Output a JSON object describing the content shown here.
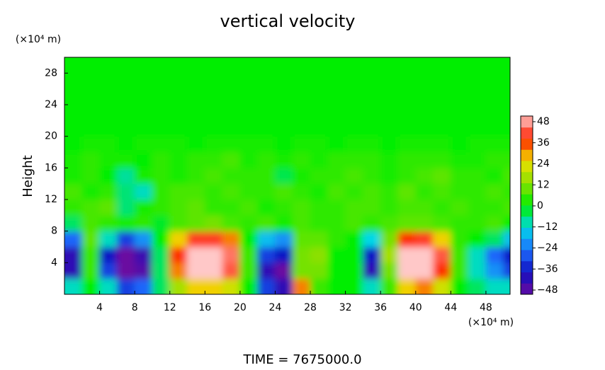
{
  "chart_data": {
    "type": "heatmap",
    "title": "vertical velocity",
    "y_label": "Height",
    "y_unit": "(×10⁴ m)",
    "x_unit": "(×10⁴ m)",
    "footer": "TIME = 7675000.0",
    "xlim": [
      0,
      50.75
    ],
    "ylim": [
      0,
      30
    ],
    "xticks": [
      4,
      8,
      12,
      16,
      20,
      24,
      28,
      32,
      36,
      40,
      44,
      48
    ],
    "yticks": [
      4,
      8,
      12,
      16,
      20,
      24,
      28
    ],
    "x": [
      1,
      3,
      5,
      7,
      9,
      11,
      13,
      15,
      17,
      19,
      21,
      23,
      25,
      27,
      29,
      31,
      33,
      35,
      37,
      39,
      41,
      43,
      45,
      47,
      49,
      51
    ],
    "y": [
      1,
      3,
      5,
      7,
      9,
      11,
      13,
      15,
      17,
      19,
      21,
      23,
      25,
      27,
      29
    ],
    "z": [
      [
        -10,
        0,
        -10,
        -30,
        -25,
        -5,
        15,
        25,
        25,
        20,
        0,
        -30,
        -40,
        30,
        5,
        0,
        0,
        -10,
        5,
        25,
        30,
        20,
        0,
        -5,
        -10,
        -10
      ],
      [
        -40,
        5,
        -30,
        -48,
        -45,
        -5,
        30,
        48,
        48,
        40,
        5,
        -40,
        -48,
        10,
        10,
        0,
        0,
        -40,
        10,
        48,
        48,
        35,
        5,
        -10,
        -20,
        -30
      ],
      [
        -40,
        5,
        -35,
        -48,
        -42,
        -5,
        35,
        48,
        48,
        42,
        5,
        -30,
        -35,
        10,
        12,
        0,
        0,
        -35,
        15,
        48,
        48,
        40,
        5,
        -10,
        -25,
        -35
      ],
      [
        -25,
        8,
        -10,
        -30,
        -20,
        0,
        25,
        38,
        38,
        30,
        0,
        -15,
        -20,
        8,
        8,
        4,
        0,
        -12,
        10,
        35,
        38,
        25,
        4,
        0,
        -5,
        -15
      ],
      [
        -5,
        6,
        4,
        2,
        4,
        -2,
        6,
        8,
        10,
        6,
        4,
        6,
        2,
        6,
        4,
        4,
        6,
        4,
        6,
        8,
        8,
        6,
        4,
        4,
        6,
        0
      ],
      [
        4,
        6,
        8,
        -6,
        2,
        4,
        6,
        8,
        4,
        4,
        6,
        2,
        4,
        6,
        4,
        4,
        6,
        6,
        4,
        6,
        6,
        4,
        6,
        4,
        4,
        6
      ],
      [
        6,
        2,
        4,
        -6,
        -10,
        4,
        6,
        6,
        4,
        6,
        4,
        4,
        6,
        4,
        2,
        6,
        4,
        6,
        4,
        8,
        4,
        6,
        4,
        4,
        6,
        4
      ],
      [
        2,
        4,
        0,
        -8,
        2,
        4,
        2,
        4,
        6,
        4,
        4,
        4,
        -4,
        2,
        4,
        4,
        6,
        4,
        2,
        4,
        6,
        8,
        4,
        4,
        2,
        6
      ],
      [
        2,
        4,
        2,
        2,
        0,
        4,
        2,
        4,
        4,
        6,
        2,
        4,
        2,
        4,
        2,
        4,
        4,
        4,
        2,
        4,
        4,
        4,
        2,
        2,
        4,
        4
      ],
      [
        0,
        2,
        2,
        0,
        2,
        2,
        2,
        0,
        2,
        2,
        2,
        2,
        0,
        2,
        2,
        0,
        2,
        2,
        0,
        2,
        2,
        2,
        0,
        2,
        2,
        2
      ],
      [
        0,
        0,
        0,
        0,
        0,
        0,
        0,
        0,
        0,
        0,
        0,
        0,
        0,
        0,
        0,
        0,
        0,
        0,
        0,
        0,
        0,
        0,
        0,
        0,
        0,
        0
      ],
      [
        0,
        0,
        0,
        0,
        0,
        0,
        0,
        0,
        0,
        0,
        0,
        0,
        0,
        0,
        0,
        0,
        0,
        0,
        0,
        0,
        0,
        0,
        0,
        0,
        0,
        0
      ],
      [
        0,
        0,
        0,
        0,
        0,
        0,
        0,
        0,
        0,
        0,
        0,
        0,
        0,
        0,
        0,
        0,
        0,
        0,
        0,
        0,
        0,
        0,
        0,
        0,
        0,
        0
      ],
      [
        0,
        0,
        0,
        0,
        0,
        0,
        0,
        0,
        0,
        0,
        0,
        0,
        0,
        0,
        0,
        0,
        0,
        0,
        0,
        0,
        0,
        0,
        0,
        0,
        0,
        0
      ],
      [
        0,
        0,
        0,
        0,
        0,
        0,
        0,
        0,
        0,
        0,
        0,
        0,
        0,
        0,
        0,
        0,
        0,
        0,
        0,
        0,
        0,
        0,
        0,
        0,
        0,
        0
      ]
    ],
    "zlim": [
      -48,
      48
    ],
    "zticks": [
      {
        "value": -48,
        "label": "−48"
      },
      {
        "value": -36,
        "label": "−36"
      },
      {
        "value": -24,
        "label": "−24"
      },
      {
        "value": -12,
        "label": "−12"
      },
      0,
      12,
      24,
      36,
      48
    ],
    "colors": [
      "#6a0aa0",
      "#1010c0",
      "#1e6eff",
      "#00d8e8",
      "#00ee00",
      "#8ce000",
      "#f0e000",
      "#ff2000",
      "#ffc8c8"
    ]
  }
}
